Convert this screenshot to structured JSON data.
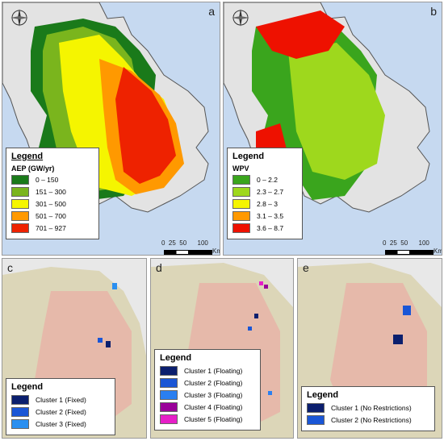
{
  "panels": [
    {
      "id": "a",
      "label": "a"
    },
    {
      "id": "b",
      "label": "b"
    },
    {
      "id": "c",
      "label": "c"
    },
    {
      "id": "d",
      "label": "d"
    },
    {
      "id": "e",
      "label": "e"
    }
  ],
  "legend_a": {
    "title": "Legend",
    "subtitle": "AEP (GW/yr)",
    "items": [
      {
        "label": "0 – 150",
        "color": "#1a7a1a"
      },
      {
        "label": "151 – 300",
        "color": "#7ab51d"
      },
      {
        "label": "301 – 500",
        "color": "#f5f500"
      },
      {
        "label": "501 – 700",
        "color": "#ff9900"
      },
      {
        "label": "701 – 927",
        "color": "#ee2200"
      }
    ]
  },
  "legend_b": {
    "title": "Legend",
    "subtitle": "WPV",
    "items": [
      {
        "label": "0 – 2.2",
        "color": "#3aa51d"
      },
      {
        "label": "2.3 – 2.7",
        "color": "#9ed81d"
      },
      {
        "label": "2.8 – 3",
        "color": "#f5f500"
      },
      {
        "label": "3.1 – 3.5",
        "color": "#ff9900"
      },
      {
        "label": "3.6 – 8.7",
        "color": "#ee1100"
      }
    ]
  },
  "legend_c": {
    "title": "Legend",
    "items": [
      {
        "label": "Cluster 1 (Fixed)",
        "color": "#0b1f6e"
      },
      {
        "label": "Cluster 2 (Fixed)",
        "color": "#1a56d6"
      },
      {
        "label": "Cluster 3 (Fixed)",
        "color": "#2a8ff0"
      }
    ]
  },
  "legend_d": {
    "title": "Legend",
    "items": [
      {
        "label": "Cluster 1 (Floating)",
        "color": "#0b1f6e"
      },
      {
        "label": "Cluster 2 (Floating)",
        "color": "#1a56d6"
      },
      {
        "label": "Cluster 3 (Floating)",
        "color": "#2a7ff0"
      },
      {
        "label": "Cluster 4 (Floating)",
        "color": "#990099"
      },
      {
        "label": "Cluster 5 (Floating)",
        "color": "#e61ec8"
      }
    ]
  },
  "legend_e": {
    "title": "Legend",
    "items": [
      {
        "label": "Cluster 1 (No Restrictions)",
        "color": "#0b1f6e"
      },
      {
        "label": "Cluster 2 (No Restrictions)",
        "color": "#1a56d6"
      }
    ]
  },
  "scalebar": {
    "ticks": [
      "0",
      "25",
      "50",
      "100"
    ],
    "unit": "Km"
  },
  "compass": {
    "north": "N",
    "south": "S",
    "east": "E",
    "west": "W",
    "icon": "compass-rose-icon"
  }
}
